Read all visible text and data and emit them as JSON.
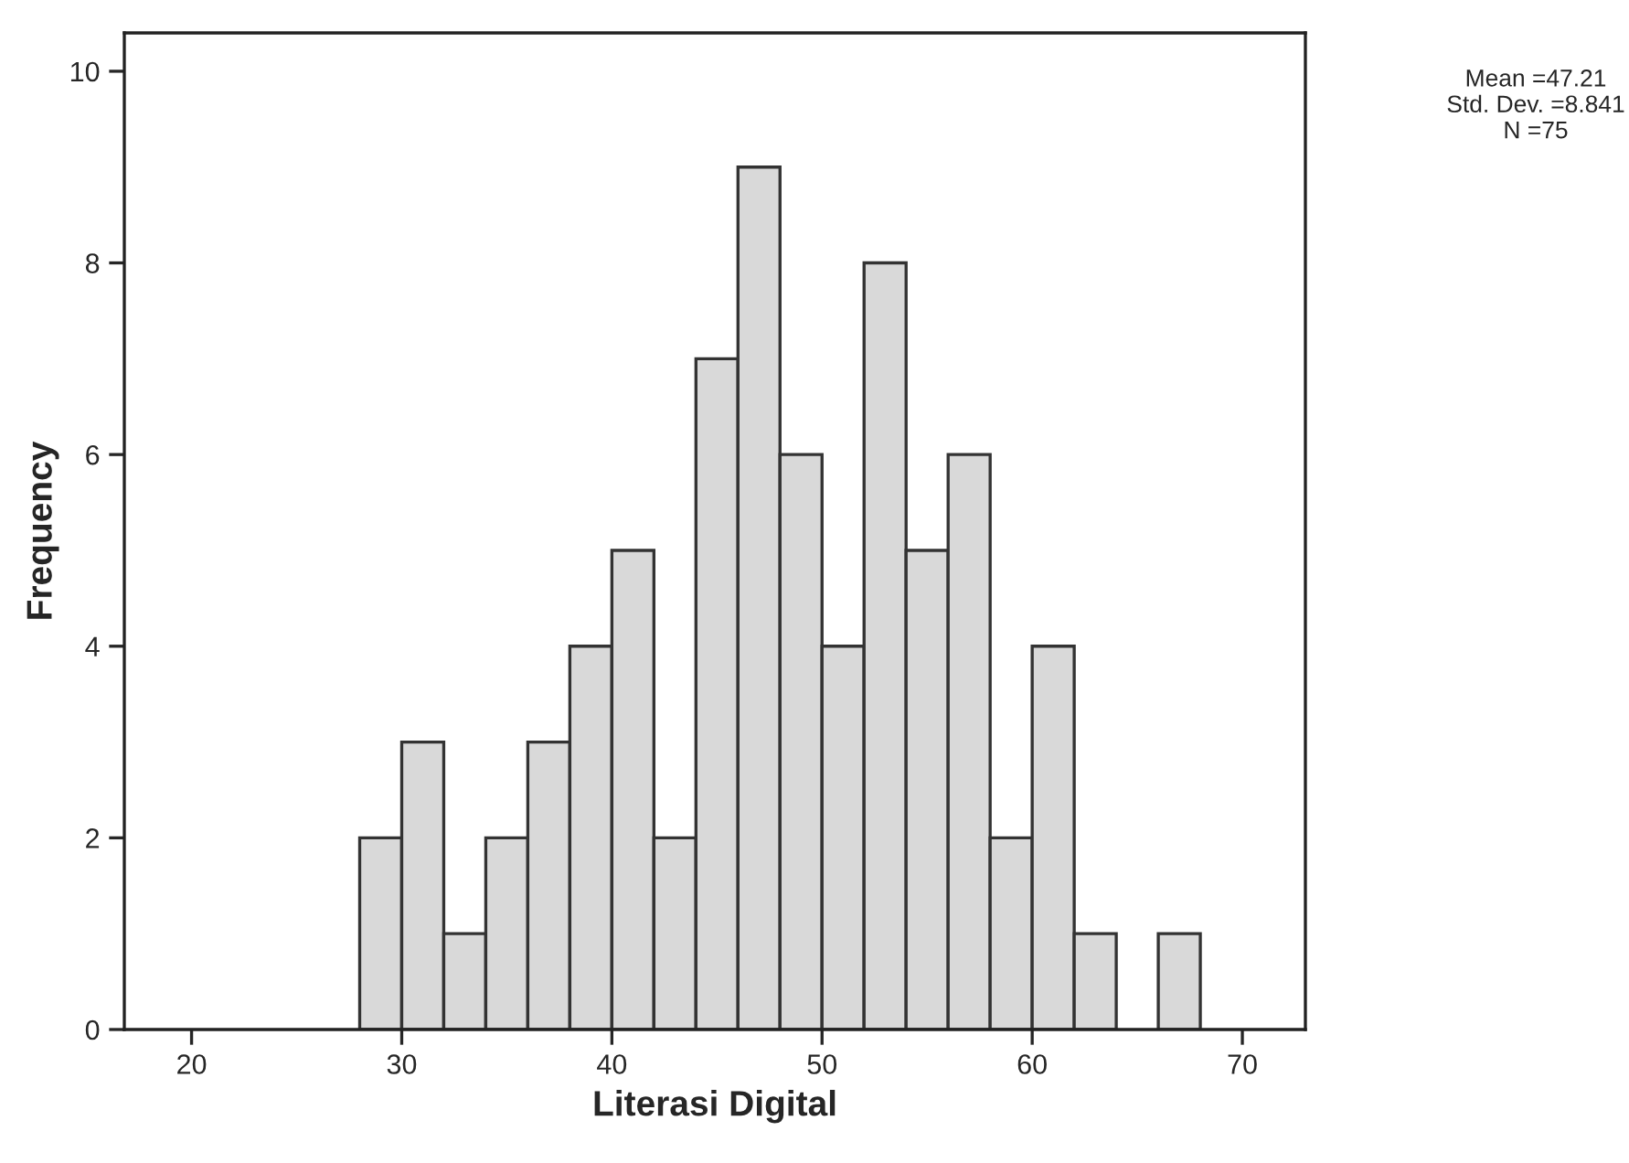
{
  "chart_data": {
    "type": "histogram",
    "xlabel": "Literasi Digital",
    "ylabel": "Frequency",
    "bins": [
      28,
      30,
      32,
      34,
      36,
      38,
      40,
      42,
      44,
      46,
      48,
      50,
      52,
      54,
      56,
      58,
      60,
      62,
      64,
      66,
      68
    ],
    "values": [
      2,
      3,
      1,
      2,
      3,
      4,
      5,
      2,
      7,
      9,
      6,
      4,
      8,
      5,
      6,
      2,
      4,
      1,
      0,
      1
    ],
    "color": "#d9d9d9",
    "xlim": [
      16.8,
      73
    ],
    "xticks": [
      20,
      30,
      40,
      50,
      60,
      70
    ],
    "ylim": [
      0,
      10.4
    ],
    "yticks": [
      0,
      2,
      4,
      6,
      8,
      10
    ],
    "grid": false,
    "annotations": [
      "Mean =47.21\nStd. Dev. =8.841\nN =75"
    ]
  }
}
